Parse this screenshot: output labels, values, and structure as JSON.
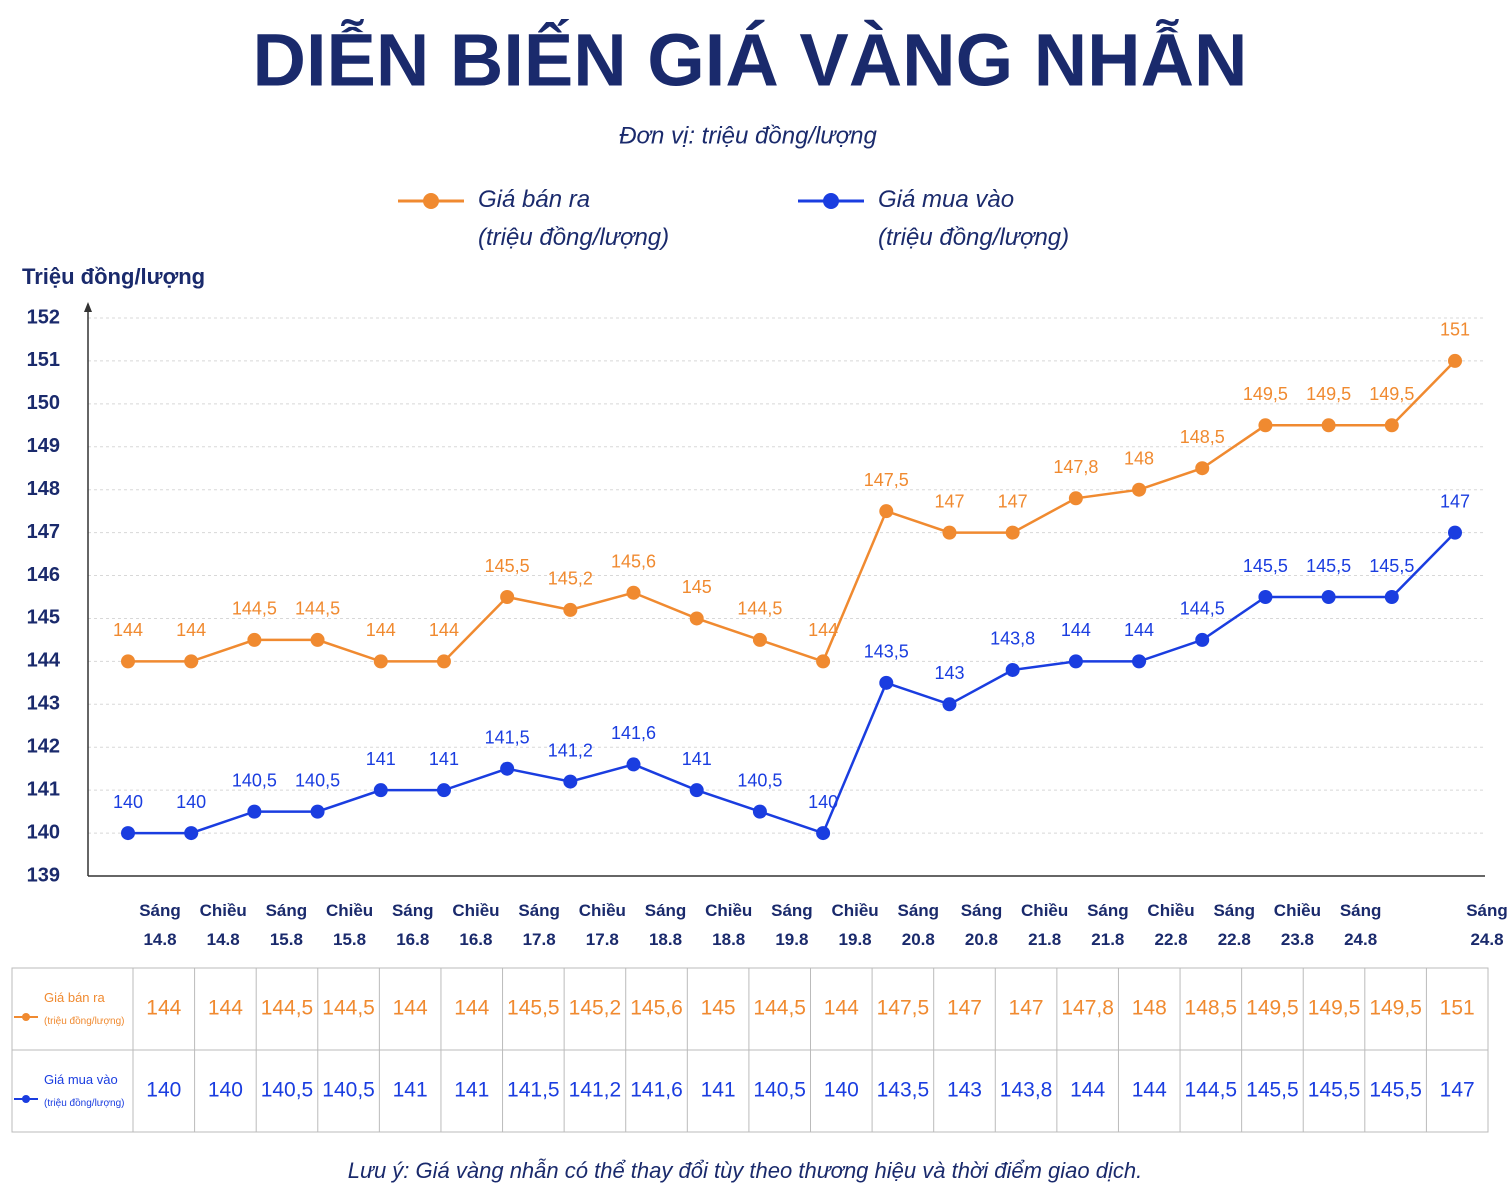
{
  "chart_data": {
    "type": "line",
    "title": "DIỄN BIẾN GIÁ VÀNG NHẪN",
    "subtitle": "Đơn vị: triệu đồng/lượng",
    "y_label": "Triệu đồng/lượng",
    "note": "Lưu ý: Giá vàng nhẫn có thể thay đổi tùy theo thương hiệu và thời điểm giao dịch.",
    "categories": [
      "Sáng 14.8",
      "Chiều 14.8",
      "Sáng 15.8",
      "Chiều 15.8",
      "Sáng 16.8",
      "Chiều 16.8",
      "Sáng 17.8",
      "Chiều 17.8",
      "Sáng 18.8",
      "Chiều 18.8",
      "Sáng 19.8",
      "Chiều 19.8",
      "Sáng 20.8",
      "Sáng 20.8",
      "Chiều 21.8",
      "Sáng 21.8",
      "Chiều 22.8",
      "Sáng 22.8",
      "Chiều 23.8",
      "Sáng 24.8",
      null,
      "Sáng 24.8"
    ],
    "series": [
      {
        "name": "Giá bán ra (triệu đồng/lượng)",
        "color": "#f08a30",
        "values": [
          144,
          144,
          144.5,
          144.5,
          144,
          144,
          145.5,
          145.2,
          145.6,
          145,
          144.5,
          144,
          147.5,
          147,
          147,
          147.8,
          148,
          148.5,
          149.5,
          149.5,
          149.5,
          151
        ],
        "value_labels": [
          "144",
          "144",
          "144,5",
          "144,5",
          "144",
          "144",
          "145,5",
          "145,2",
          "145,6",
          "145",
          "144,5",
          "144",
          "147,5",
          "147",
          "147",
          "147,8",
          "148",
          "148,5",
          "149,5",
          "149,5",
          "149,5",
          "151"
        ]
      },
      {
        "name": "Giá mua vào (triệu đồng/lượng)",
        "color": "#1a3de0",
        "values": [
          140,
          140,
          140.5,
          140.5,
          141,
          141,
          141.5,
          141.2,
          141.6,
          141,
          140.5,
          140,
          143.5,
          143,
          143.8,
          144,
          144,
          144.5,
          145.5,
          145.5,
          145.5,
          147
        ],
        "value_labels": [
          "140",
          "140",
          "140,5",
          "140,5",
          "141",
          "141",
          "141,5",
          "141,2",
          "141,6",
          "141",
          "140,5",
          "140",
          "143,5",
          "143",
          "143,8",
          "144",
          "144",
          "144,5",
          "145,5",
          "145,5",
          "145,5",
          "147"
        ]
      }
    ],
    "ylim": [
      139,
      152
    ],
    "yticks": [
      139,
      140,
      141,
      142,
      143,
      144,
      145,
      146,
      147,
      148,
      149,
      150,
      151,
      152
    ],
    "grid": true
  }
}
